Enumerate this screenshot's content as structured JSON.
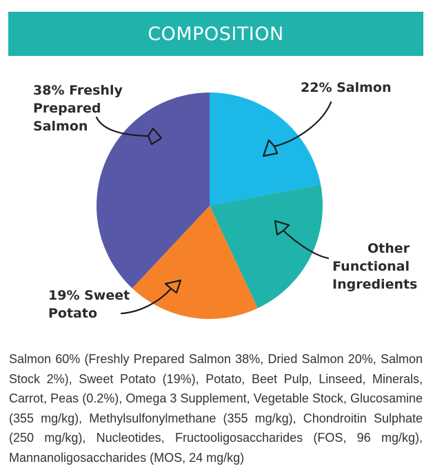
{
  "header": {
    "title": "COMPOSITION"
  },
  "chart_data": {
    "type": "pie",
    "slices": [
      {
        "label": "22% Salmon",
        "value": 22,
        "color": "#1cb8e8"
      },
      {
        "label": "Other Functional Ingredients",
        "value": 21,
        "color": "#1fb3ac"
      },
      {
        "label": "19% Sweet Potato",
        "value": 19,
        "color": "#f58229"
      },
      {
        "label": "38% Freshly Prepared Salmon",
        "value": 38,
        "color": "#5858a8"
      }
    ],
    "labels": {
      "freshly_prepared": [
        "38% Freshly",
        "Prepared",
        "Salmon"
      ],
      "salmon": [
        "22% Salmon"
      ],
      "other": [
        "Other",
        "Functional",
        "Ingredients"
      ],
      "sweet_potato": [
        "19% Sweet",
        "Potato"
      ]
    }
  },
  "ingredients": "Salmon 60% (Freshly Prepared Salmon 38%, Dried Salmon 20%, Salmon Stock 2%), Sweet Potato (19%), Potato, Beet Pulp, Linseed, Minerals, Carrot, Peas (0.2%), Omega 3 Supplement, Vegetable Stock, Glucosamine (355 mg/kg), Methylsulfonylmethane (355 mg/kg), Chondroitin Sulphate (250 mg/kg), Nucleotides, Fructooligosaccharides (FOS, 96 mg/kg), Mannanoligosaccharides (MOS, 24 mg/kg)"
}
